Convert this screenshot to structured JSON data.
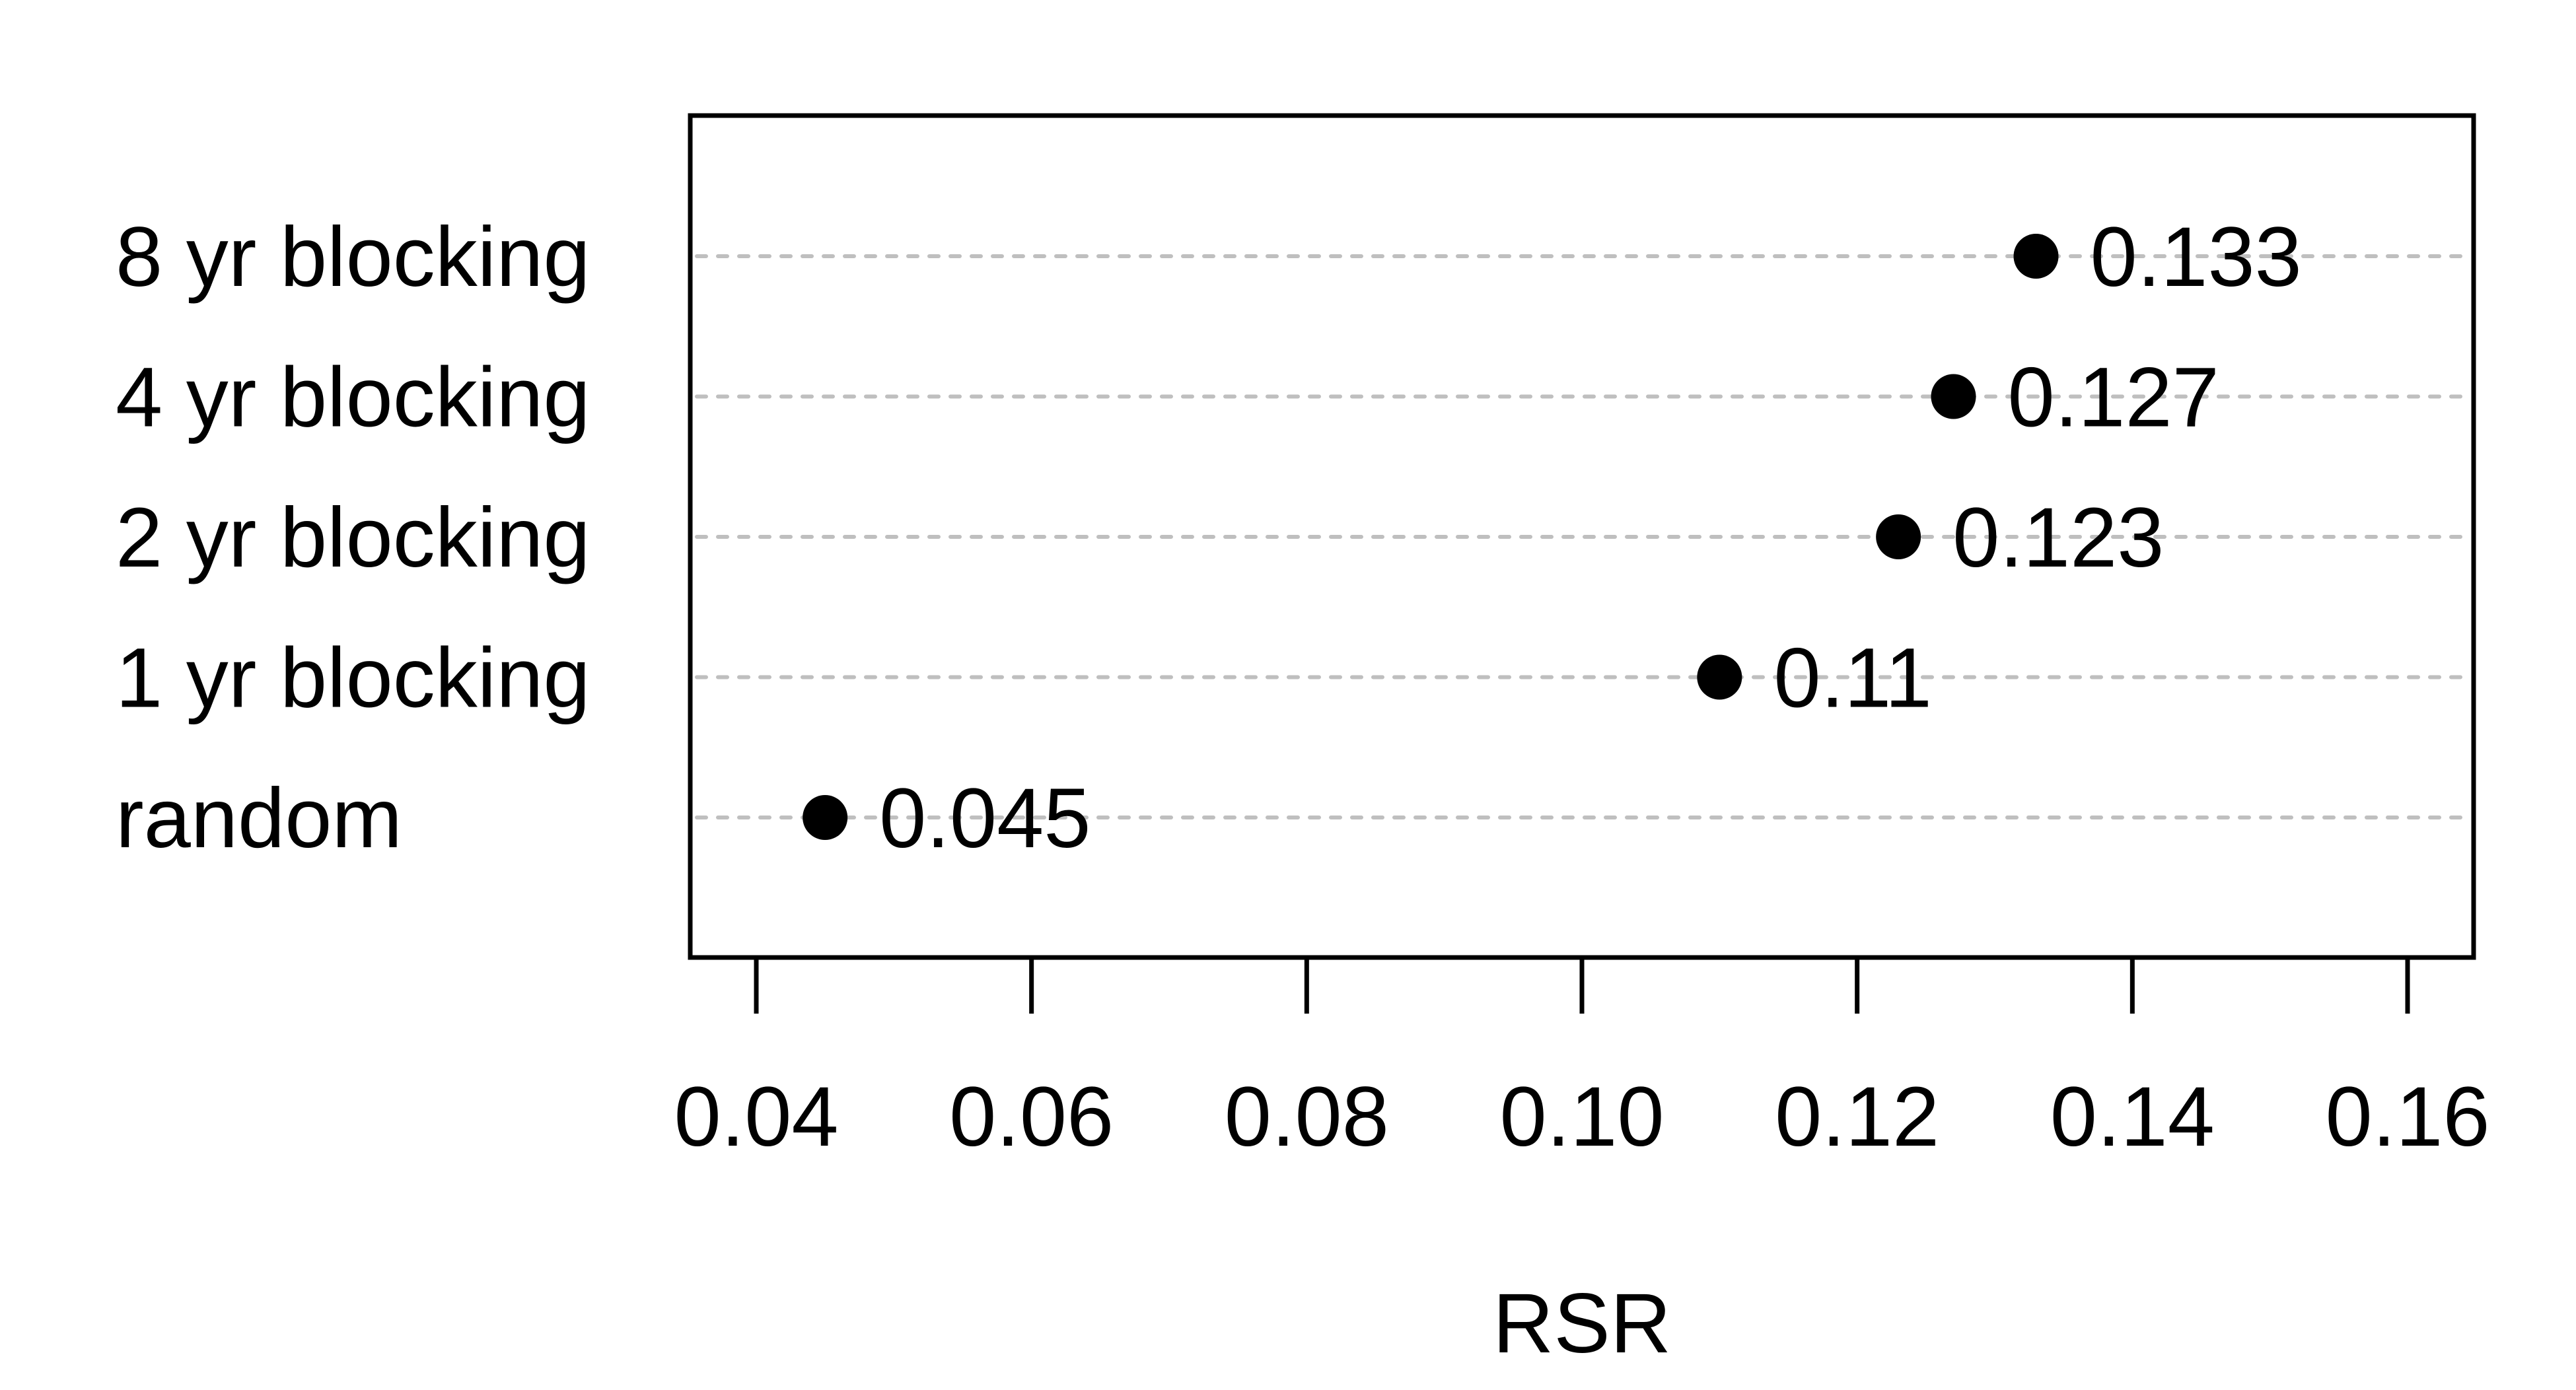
{
  "chart_data": {
    "type": "scatter",
    "title": "",
    "xlabel": "RSR",
    "ylabel": "",
    "categories": [
      "8 yr blocking",
      "4 yr blocking",
      "2 yr blocking",
      "1 yr blocking",
      "random"
    ],
    "values": [
      0.133,
      0.127,
      0.123,
      0.11,
      0.045
    ],
    "data_labels": [
      "0.133",
      "0.127",
      "0.123",
      "0.11",
      "0.045"
    ],
    "xlim": [
      0.04,
      0.16
    ],
    "xticks": [
      0.04,
      0.06,
      0.08,
      0.1,
      0.12,
      0.14,
      0.16
    ],
    "xtick_labels": [
      "0.04",
      "0.06",
      "0.08",
      "0.10",
      "0.12",
      "0.14",
      "0.16"
    ],
    "grid": "horizontal dotted lines",
    "legend": "none",
    "colors": {
      "point": "#000000",
      "gridline": "#bfbfbf",
      "frame": "#000000"
    }
  }
}
